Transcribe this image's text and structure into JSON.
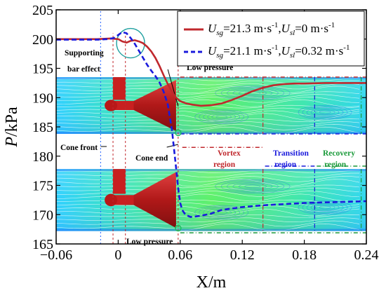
{
  "chart_data": {
    "type": "line",
    "xlabel": "X/m",
    "ylabel_italic": "P",
    "ylabel_unit": "/kPa",
    "xlim": [
      -0.06,
      0.24
    ],
    "ylim": [
      165,
      205
    ],
    "xticks": [
      -0.06,
      0.0,
      0.06,
      0.12,
      0.18,
      0.24
    ],
    "xtick_labels": [
      "−0.06",
      "0",
      "0.06",
      "0.12",
      "0.18",
      "0.24"
    ],
    "yticks": [
      165,
      170,
      175,
      180,
      185,
      190,
      195,
      200,
      205
    ],
    "ytick_labels": [
      "165",
      "170",
      "175",
      "180",
      "185",
      "190",
      "195",
      "200",
      "205"
    ],
    "legend_position": "top-right",
    "series": [
      {
        "style": "solid",
        "color": "#c0282d",
        "legend": {
          "u1": "U",
          "s1": "sg",
          "e1": "=21.3 m·s",
          "sup1": "-1",
          "mid": ",",
          "u2": "U",
          "s2": "sl",
          "e2": "=0 m·s",
          "sup2": "-1"
        },
        "x": [
          -0.06,
          -0.02,
          -0.008,
          0.0,
          0.004,
          0.008,
          0.012,
          0.016,
          0.02,
          0.024,
          0.028,
          0.032,
          0.036,
          0.04,
          0.044,
          0.048,
          0.052,
          0.056,
          0.06,
          0.066,
          0.072,
          0.08,
          0.09,
          0.1,
          0.11,
          0.12,
          0.13,
          0.14,
          0.15,
          0.16,
          0.17,
          0.18,
          0.2,
          0.22,
          0.24
        ],
        "y": [
          200.0,
          200.0,
          200.1,
          200.0,
          199.6,
          199.4,
          199.7,
          199.8,
          199.6,
          199.3,
          198.7,
          197.9,
          196.8,
          195.4,
          193.8,
          192.3,
          191.0,
          190.0,
          189.4,
          189.0,
          188.8,
          188.6,
          188.7,
          189.0,
          189.6,
          190.3,
          191.1,
          191.7,
          192.1,
          192.3,
          192.4,
          192.4,
          192.5,
          192.5,
          192.5
        ]
      },
      {
        "style": "dashed",
        "color": "#1a1adc",
        "legend": {
          "u1": "U",
          "s1": "sg",
          "e1": "=21.1 m·s",
          "sup1": "-1",
          "mid": ",",
          "u2": "U",
          "s2": "sl",
          "e2": "=0.32 m·s",
          "sup2": "-1"
        },
        "x": [
          -0.06,
          -0.02,
          -0.01,
          -0.004,
          0.0,
          0.004,
          0.008,
          0.012,
          0.016,
          0.02,
          0.024,
          0.028,
          0.032,
          0.036,
          0.04,
          0.044,
          0.048,
          0.052,
          0.056,
          0.058,
          0.06,
          0.062,
          0.065,
          0.07,
          0.08,
          0.09,
          0.1,
          0.12,
          0.14,
          0.16,
          0.18,
          0.2,
          0.22,
          0.24
        ],
        "y": [
          199.9,
          199.9,
          200.0,
          200.2,
          200.7,
          201.2,
          201.0,
          200.2,
          199.2,
          198.0,
          196.8,
          195.6,
          194.6,
          193.7,
          192.6,
          191.0,
          188.8,
          184.5,
          178.0,
          174.5,
          172.0,
          170.8,
          170.0,
          169.6,
          169.8,
          170.2,
          170.8,
          171.3,
          171.6,
          171.8,
          172.0,
          172.1,
          172.2,
          172.3
        ]
      }
    ],
    "annotations": {
      "supporting_line1": "Supporting",
      "supporting_line2": "bar effect",
      "low_pressure_top": "Low pressure",
      "low_pressure_bottom": "Low pressure",
      "cone_front": "Cone front",
      "cone_end": "Cone end",
      "vortex_line1": "Vortex",
      "vortex_line2": "region",
      "transition_line1": "Transition",
      "transition_line2": "region",
      "recovery_line1": "Recovery",
      "recovery_line2": "region"
    },
    "colors": {
      "vortex": "#c0282d",
      "transition": "#1a1adc",
      "recovery": "#1a9a3a",
      "flow_background": "#4fe08a"
    }
  }
}
